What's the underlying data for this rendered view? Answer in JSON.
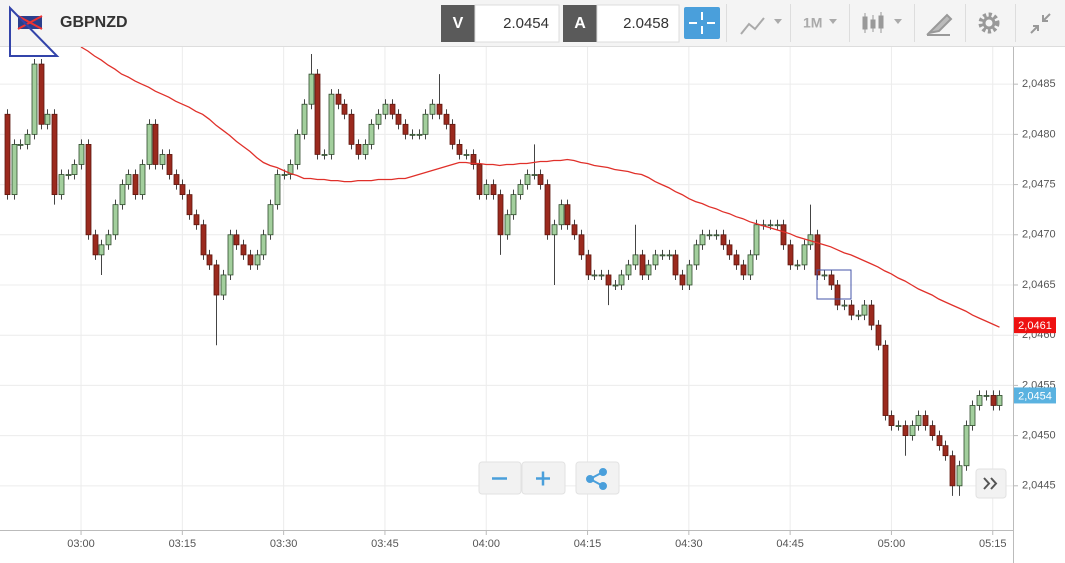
{
  "toolbar": {
    "symbol": "GBPNZD",
    "bid_label": "V",
    "bid": 2.0454,
    "ask_label": "A",
    "ask": 2.0458,
    "timeframe": "1M"
  },
  "chart_data": {
    "type": "candlestick",
    "x": [
      "02:49",
      "02:50",
      "02:51",
      "02:52",
      "02:53",
      "02:54",
      "02:55",
      "02:56",
      "02:57",
      "02:58",
      "02:59",
      "03:00",
      "03:01",
      "03:02",
      "03:03",
      "03:04",
      "03:05",
      "03:06",
      "03:07",
      "03:08",
      "03:09",
      "03:10",
      "03:11",
      "03:12",
      "03:13",
      "03:14",
      "03:15",
      "03:16",
      "03:17",
      "03:18",
      "03:19",
      "03:20",
      "03:21",
      "03:22",
      "03:23",
      "03:24",
      "03:25",
      "03:26",
      "03:27",
      "03:28",
      "03:29",
      "03:30",
      "03:31",
      "03:32",
      "03:33",
      "03:34",
      "03:35",
      "03:36",
      "03:37",
      "03:38",
      "03:39",
      "03:40",
      "03:41",
      "03:42",
      "03:43",
      "03:44",
      "03:45",
      "03:46",
      "03:47",
      "03:48",
      "03:49",
      "03:50",
      "03:51",
      "03:52",
      "03:53",
      "03:54",
      "03:55",
      "03:56",
      "03:57",
      "03:58",
      "03:59",
      "04:00",
      "04:01",
      "04:02",
      "04:03",
      "04:04",
      "04:05",
      "04:06",
      "04:07",
      "04:08",
      "04:09",
      "04:10",
      "04:11",
      "04:12",
      "04:13",
      "04:14",
      "04:15",
      "04:16",
      "04:17",
      "04:18",
      "04:19",
      "04:20",
      "04:21",
      "04:22",
      "04:23",
      "04:24",
      "04:25",
      "04:26",
      "04:27",
      "04:28",
      "04:29",
      "04:30",
      "04:31",
      "04:32",
      "04:33",
      "04:34",
      "04:35",
      "04:36",
      "04:37",
      "04:38",
      "04:39",
      "04:40",
      "04:41",
      "04:42",
      "04:43",
      "04:44",
      "04:45",
      "04:46",
      "04:47",
      "04:48",
      "04:49",
      "04:50",
      "04:51",
      "04:52",
      "04:53",
      "04:54",
      "04:55",
      "04:56",
      "04:57",
      "04:58",
      "04:59",
      "05:00",
      "05:01",
      "05:02",
      "05:03",
      "05:04",
      "05:05",
      "05:06",
      "05:07",
      "05:08",
      "05:09",
      "05:10",
      "05:11",
      "05:12",
      "05:13",
      "05:14",
      "05:15",
      "05:16"
    ],
    "open": [
      2.0482,
      2.0474,
      2.0479,
      2.0479,
      2.048,
      2.0487,
      2.0481,
      2.0482,
      2.0474,
      2.0476,
      2.0476,
      2.0477,
      2.0479,
      2.047,
      2.0468,
      2.0469,
      2.047,
      2.0473,
      2.0475,
      2.0476,
      2.0474,
      2.0477,
      2.0481,
      2.0477,
      2.0478,
      2.0476,
      2.0475,
      2.0474,
      2.0472,
      2.0471,
      2.0468,
      2.0467,
      2.0464,
      2.0466,
      2.047,
      2.0469,
      2.0468,
      2.0467,
      2.0468,
      2.047,
      2.0473,
      2.0476,
      2.0476,
      2.0477,
      2.048,
      2.0483,
      2.0486,
      2.0478,
      2.0478,
      2.0484,
      2.0483,
      2.0482,
      2.0479,
      2.0478,
      2.0479,
      2.0481,
      2.0482,
      2.0483,
      2.0482,
      2.0481,
      2.048,
      2.048,
      2.048,
      2.0482,
      2.0483,
      2.0482,
      2.0481,
      2.0479,
      2.0478,
      2.0478,
      2.0477,
      2.0474,
      2.0475,
      2.0474,
      2.047,
      2.0472,
      2.0474,
      2.0475,
      2.0476,
      2.0476,
      2.0475,
      2.047,
      2.0471,
      2.0473,
      2.0471,
      2.047,
      2.0468,
      2.0466,
      2.0466,
      2.0466,
      2.0465,
      2.0465,
      2.0466,
      2.0467,
      2.0468,
      2.0466,
      2.0467,
      2.0468,
      2.0468,
      2.0468,
      2.0466,
      2.0465,
      2.0467,
      2.0469,
      2.047,
      2.047,
      2.047,
      2.0469,
      2.0468,
      2.0467,
      2.0466,
      2.0468,
      2.0471,
      2.0471,
      2.0471,
      2.0471,
      2.0469,
      2.0467,
      2.0467,
      2.0469,
      2.047,
      2.0466,
      2.0466,
      2.0465,
      2.0463,
      2.0463,
      2.0462,
      2.0462,
      2.0463,
      2.0461,
      2.0459,
      2.0452,
      2.0451,
      2.0451,
      2.045,
      2.0451,
      2.0452,
      2.0451,
      2.045,
      2.0449,
      2.0448,
      2.0445,
      2.0447,
      2.0451,
      2.0453,
      2.0454,
      2.0454,
      2.0453
    ],
    "high": [
      2.04825,
      2.04795,
      2.04795,
      2.04805,
      2.04875,
      2.04875,
      2.04825,
      2.04825,
      2.04765,
      2.04765,
      2.04775,
      2.04795,
      2.04795,
      2.04705,
      2.04695,
      2.04705,
      2.04735,
      2.04755,
      2.04765,
      2.04765,
      2.04775,
      2.04815,
      2.04815,
      2.04785,
      2.04785,
      2.04765,
      2.04755,
      2.04745,
      2.04725,
      2.04715,
      2.04685,
      2.04675,
      2.04665,
      2.04705,
      2.04705,
      2.04695,
      2.04685,
      2.04685,
      2.04705,
      2.04735,
      2.04765,
      2.04765,
      2.04775,
      2.04805,
      2.04835,
      2.0488,
      2.04865,
      2.04785,
      2.04845,
      2.04845,
      2.04835,
      2.04825,
      2.04795,
      2.04795,
      2.04815,
      2.04825,
      2.04835,
      2.04835,
      2.04825,
      2.04815,
      2.04805,
      2.04805,
      2.04825,
      2.04835,
      2.0486,
      2.04825,
      2.04815,
      2.04795,
      2.04785,
      2.04785,
      2.04775,
      2.04755,
      2.04755,
      2.04745,
      2.04725,
      2.04745,
      2.04755,
      2.04765,
      2.0479,
      2.04765,
      2.04755,
      2.04715,
      2.04735,
      2.04735,
      2.04715,
      2.04705,
      2.04685,
      2.04665,
      2.04665,
      2.04665,
      2.04655,
      2.04665,
      2.04675,
      2.0471,
      2.04685,
      2.04675,
      2.04685,
      2.04685,
      2.04685,
      2.04685,
      2.04665,
      2.04675,
      2.04695,
      2.04705,
      2.04705,
      2.04705,
      2.04705,
      2.04695,
      2.04685,
      2.04675,
      2.04685,
      2.04715,
      2.04715,
      2.04715,
      2.04715,
      2.04715,
      2.04695,
      2.04675,
      2.04695,
      2.0473,
      2.04705,
      2.04665,
      2.04665,
      2.04655,
      2.04635,
      2.04635,
      2.04625,
      2.04635,
      2.04635,
      2.04615,
      2.04595,
      2.04525,
      2.04515,
      2.04515,
      2.04515,
      2.04525,
      2.04525,
      2.04515,
      2.04505,
      2.04495,
      2.04485,
      2.04475,
      2.04515,
      2.04535,
      2.04545,
      2.04545,
      2.04545,
      2.04545
    ],
    "low": [
      2.04735,
      2.04735,
      2.04785,
      2.04785,
      2.04795,
      2.04805,
      2.04805,
      2.0473,
      2.04735,
      2.04755,
      2.04755,
      2.04765,
      2.04695,
      2.04675,
      2.0466,
      2.04685,
      2.04695,
      2.04725,
      2.04745,
      2.04735,
      2.04735,
      2.04765,
      2.04765,
      2.04765,
      2.04755,
      2.04745,
      2.04735,
      2.04715,
      2.04705,
      2.04675,
      2.04665,
      2.0459,
      2.04635,
      2.04655,
      2.04685,
      2.04675,
      2.04665,
      2.04665,
      2.04675,
      2.04695,
      2.04725,
      2.04755,
      2.04755,
      2.04765,
      2.04795,
      2.04825,
      2.04775,
      2.04775,
      2.04775,
      2.04825,
      2.04815,
      2.04785,
      2.04775,
      2.04775,
      2.04785,
      2.04805,
      2.04815,
      2.04815,
      2.04805,
      2.04795,
      2.04795,
      2.04795,
      2.04795,
      2.04815,
      2.04815,
      2.04805,
      2.04785,
      2.04775,
      2.04775,
      2.04765,
      2.04735,
      2.04735,
      2.04735,
      2.0468,
      2.04695,
      2.04715,
      2.04735,
      2.04745,
      2.04755,
      2.04745,
      2.04695,
      2.0465,
      2.04705,
      2.04705,
      2.04695,
      2.04675,
      2.04655,
      2.04655,
      2.04655,
      2.0463,
      2.04645,
      2.04645,
      2.04655,
      2.04665,
      2.04655,
      2.04655,
      2.04665,
      2.04675,
      2.04675,
      2.04655,
      2.04645,
      2.04645,
      2.04665,
      2.04685,
      2.04695,
      2.04695,
      2.04685,
      2.04675,
      2.04665,
      2.04655,
      2.04655,
      2.04675,
      2.04705,
      2.04705,
      2.04705,
      2.04685,
      2.04665,
      2.04665,
      2.04665,
      2.04685,
      2.04655,
      2.04655,
      2.04645,
      2.04625,
      2.04625,
      2.04615,
      2.04615,
      2.04615,
      2.04605,
      2.04585,
      2.04515,
      2.04505,
      2.04505,
      2.0448,
      2.04495,
      2.04505,
      2.04505,
      2.04495,
      2.04485,
      2.04475,
      2.0444,
      2.0444,
      2.04465,
      2.04505,
      2.04525,
      2.04535,
      2.04525,
      2.04525
    ],
    "close": [
      2.0474,
      2.0479,
      2.0479,
      2.048,
      2.0487,
      2.0481,
      2.0482,
      2.0474,
      2.0476,
      2.0476,
      2.0477,
      2.0479,
      2.047,
      2.0468,
      2.0469,
      2.047,
      2.0473,
      2.0475,
      2.0476,
      2.0474,
      2.0477,
      2.0481,
      2.0477,
      2.0478,
      2.0476,
      2.0475,
      2.0474,
      2.0472,
      2.0471,
      2.0468,
      2.0467,
      2.0464,
      2.0466,
      2.047,
      2.0469,
      2.0468,
      2.0467,
      2.0468,
      2.047,
      2.0473,
      2.0476,
      2.0476,
      2.0477,
      2.048,
      2.0483,
      2.0486,
      2.0478,
      2.0478,
      2.0484,
      2.0483,
      2.0482,
      2.0479,
      2.0478,
      2.0479,
      2.0481,
      2.0482,
      2.0483,
      2.0482,
      2.0481,
      2.048,
      2.048,
      2.048,
      2.0482,
      2.0483,
      2.0482,
      2.0481,
      2.0479,
      2.0478,
      2.0478,
      2.0477,
      2.0474,
      2.0475,
      2.0474,
      2.047,
      2.0472,
      2.0474,
      2.0475,
      2.0476,
      2.0476,
      2.0475,
      2.047,
      2.0471,
      2.0473,
      2.0471,
      2.047,
      2.0468,
      2.0466,
      2.0466,
      2.0466,
      2.0465,
      2.0465,
      2.0466,
      2.0467,
      2.0468,
      2.0466,
      2.0467,
      2.0468,
      2.0468,
      2.0468,
      2.0466,
      2.0465,
      2.0467,
      2.0469,
      2.047,
      2.047,
      2.047,
      2.0469,
      2.0468,
      2.0467,
      2.0466,
      2.0468,
      2.0471,
      2.0471,
      2.0471,
      2.0471,
      2.0469,
      2.0467,
      2.0467,
      2.0469,
      2.047,
      2.0466,
      2.0466,
      2.0465,
      2.0463,
      2.0463,
      2.0462,
      2.0462,
      2.0463,
      2.0461,
      2.0459,
      2.0452,
      2.0451,
      2.0451,
      2.045,
      2.0451,
      2.0452,
      2.0451,
      2.045,
      2.0449,
      2.0448,
      2.0445,
      2.0447,
      2.0451,
      2.0453,
      2.0454,
      2.0454,
      2.0453,
      2.0454
    ],
    "up_color": "#a3cf9d",
    "down_color": "#9b2a1e",
    "moving_average": {
      "color": "#e0302a",
      "values": [
        null,
        null,
        null,
        null,
        null,
        null,
        null,
        null,
        null,
        null,
        null,
        2.04887,
        2.04883,
        2.04878,
        2.04874,
        2.04869,
        2.04865,
        2.0486,
        2.04857,
        2.04853,
        2.0485,
        2.04847,
        2.04843,
        2.0484,
        2.04837,
        2.04833,
        2.0483,
        2.04827,
        2.04823,
        2.0482,
        2.04815,
        2.04809,
        2.04804,
        2.04799,
        2.04793,
        2.04788,
        2.04783,
        2.04777,
        2.04772,
        2.04769,
        2.04767,
        2.04764,
        2.04761,
        2.04759,
        2.04756,
        2.04756,
        2.04755,
        2.04755,
        2.04754,
        2.04754,
        2.04753,
        2.04753,
        2.04754,
        2.04754,
        2.04754,
        2.04755,
        2.04755,
        2.04755,
        2.04756,
        2.04756,
        2.04758,
        2.0476,
        2.04762,
        2.04764,
        2.04766,
        2.04768,
        2.0477,
        2.04772,
        2.04772,
        2.04771,
        2.04771,
        2.0477,
        2.0477,
        2.04769,
        2.0477,
        2.0477,
        2.04771,
        2.04771,
        2.04772,
        2.04773,
        2.04773,
        2.04774,
        2.04774,
        2.04775,
        2.04774,
        2.04772,
        2.04771,
        2.04769,
        2.04768,
        2.04767,
        2.04765,
        2.04764,
        2.04763,
        2.04761,
        2.0476,
        2.04757,
        2.04753,
        2.0475,
        2.04747,
        2.04743,
        2.0474,
        2.04736,
        2.04733,
        2.04731,
        2.04728,
        2.04726,
        2.04723,
        2.04721,
        2.04718,
        2.04716,
        2.04713,
        2.04711,
        2.04709,
        2.04707,
        2.04705,
        2.04703,
        2.04701,
        2.04698,
        2.04696,
        2.04694,
        2.04692,
        2.0469,
        2.04688,
        2.04685,
        2.04682,
        2.0468,
        2.04677,
        2.04674,
        2.04671,
        2.04668,
        2.04664,
        2.04661,
        2.04657,
        2.04654,
        2.0465,
        2.04646,
        2.04643,
        2.0464,
        2.04636,
        2.04633,
        2.0463,
        2.04627,
        2.04624,
        2.0462,
        2.04617,
        2.04614,
        2.04611,
        2.04608
      ]
    },
    "xlim": [
      "02:48",
      "05:18"
    ],
    "xticks": [
      "03:00",
      "03:15",
      "03:30",
      "03:45",
      "04:00",
      "04:15",
      "04:30",
      "04:45",
      "05:00",
      "05:15"
    ],
    "ylim": [
      2.04406,
      2.04887
    ],
    "yticks": [
      {
        "value": 2.0445,
        "label": "2,0445"
      },
      {
        "value": 2.045,
        "label": "2,0450"
      },
      {
        "value": 2.0455,
        "label": "2,0455"
      },
      {
        "value": 2.046,
        "label": "2,0460"
      },
      {
        "value": 2.0465,
        "label": "2,0465"
      },
      {
        "value": 2.047,
        "label": "2,0470"
      },
      {
        "value": 2.0475,
        "label": "2,0475"
      },
      {
        "value": 2.048,
        "label": "2,0480"
      },
      {
        "value": 2.0485,
        "label": "2,0485"
      }
    ],
    "grid": true,
    "price_labels": [
      {
        "value": 2.0461,
        "label": "2,0461",
        "color": "#ee1111"
      },
      {
        "value": 2.0454,
        "label": "2,0454",
        "color": "#5ab2e0"
      }
    ]
  }
}
